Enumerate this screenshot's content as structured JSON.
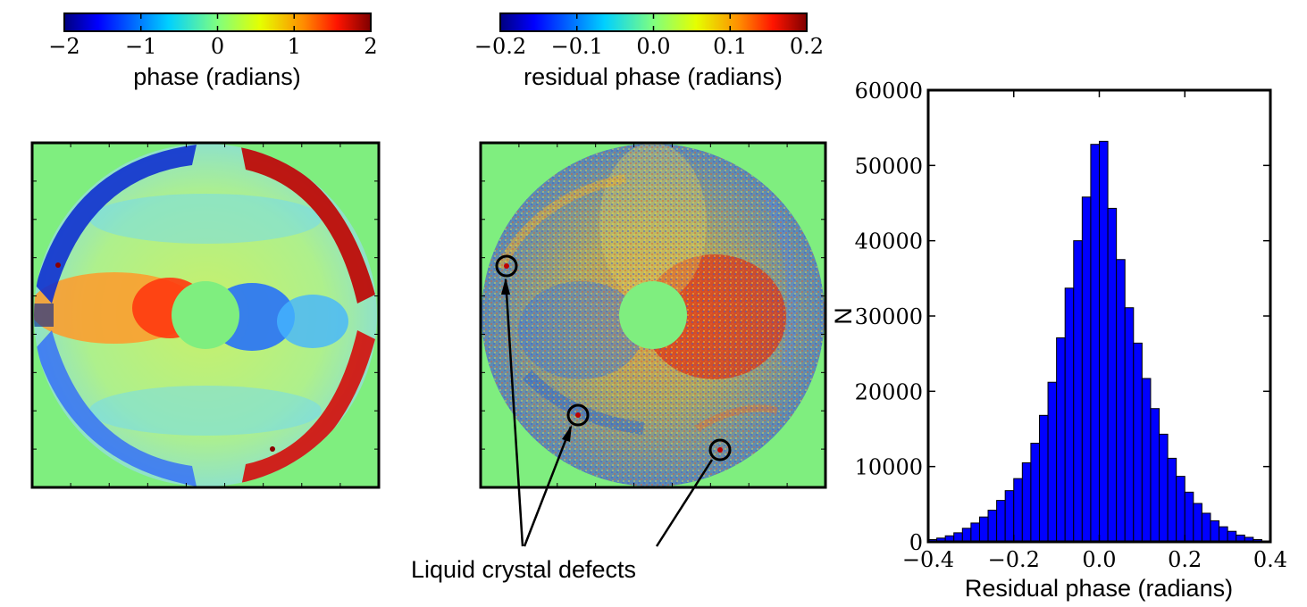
{
  "colorbar_left": {
    "label": "phase (radians)",
    "ticks": [
      "−2",
      "−1",
      "0",
      "1",
      "2"
    ],
    "cmap": [
      "#00007f",
      "#0000ff",
      "#007fff",
      "#00e5ff",
      "#7fff7f",
      "#e5ff00",
      "#ff8c00",
      "#ff1400",
      "#7f0000"
    ]
  },
  "colorbar_middle": {
    "label": "residual phase (radians)",
    "ticks": [
      "−0.2",
      "−0.1",
      "0.0",
      "0.1",
      "0.2"
    ]
  },
  "annotation": {
    "label": "Liquid crystal defects"
  },
  "colors": {
    "background_green": "#7fee7f",
    "bar_blue": "#0000ff",
    "frame": "#000000"
  },
  "chart_data": {
    "type": "bar",
    "xlabel": "Residual phase (radians)",
    "ylabel": "N",
    "xlim": [
      -0.4,
      0.4
    ],
    "ylim": [
      0,
      60000
    ],
    "x_ticks": [
      "−0.4",
      "−0.2",
      "0.0",
      "0.2",
      "0.4"
    ],
    "y_ticks": [
      "0",
      "10000",
      "20000",
      "30000",
      "40000",
      "50000",
      "60000"
    ],
    "bin_width": 0.02,
    "bin_starts": [
      -0.4,
      -0.38,
      -0.36,
      -0.34,
      -0.32,
      -0.3,
      -0.28,
      -0.26,
      -0.24,
      -0.22,
      -0.2,
      -0.18,
      -0.16,
      -0.14,
      -0.12,
      -0.1,
      -0.08,
      -0.06,
      -0.04,
      -0.02,
      0.0,
      0.02,
      0.04,
      0.06,
      0.08,
      0.1,
      0.12,
      0.14,
      0.16,
      0.18,
      0.2,
      0.22,
      0.24,
      0.26,
      0.28,
      0.3,
      0.32,
      0.34,
      0.36,
      0.38
    ],
    "values": [
      300,
      500,
      800,
      1200,
      1800,
      2500,
      3300,
      4200,
      5500,
      6800,
      8400,
      10500,
      13100,
      16800,
      21200,
      27100,
      33700,
      40000,
      45800,
      52800,
      53200,
      44300,
      37500,
      31100,
      26400,
      21700,
      17700,
      14300,
      11100,
      8700,
      6600,
      5100,
      3800,
      2800,
      2000,
      1400,
      900,
      600,
      300,
      100
    ],
    "grid": false,
    "legend": "none"
  }
}
